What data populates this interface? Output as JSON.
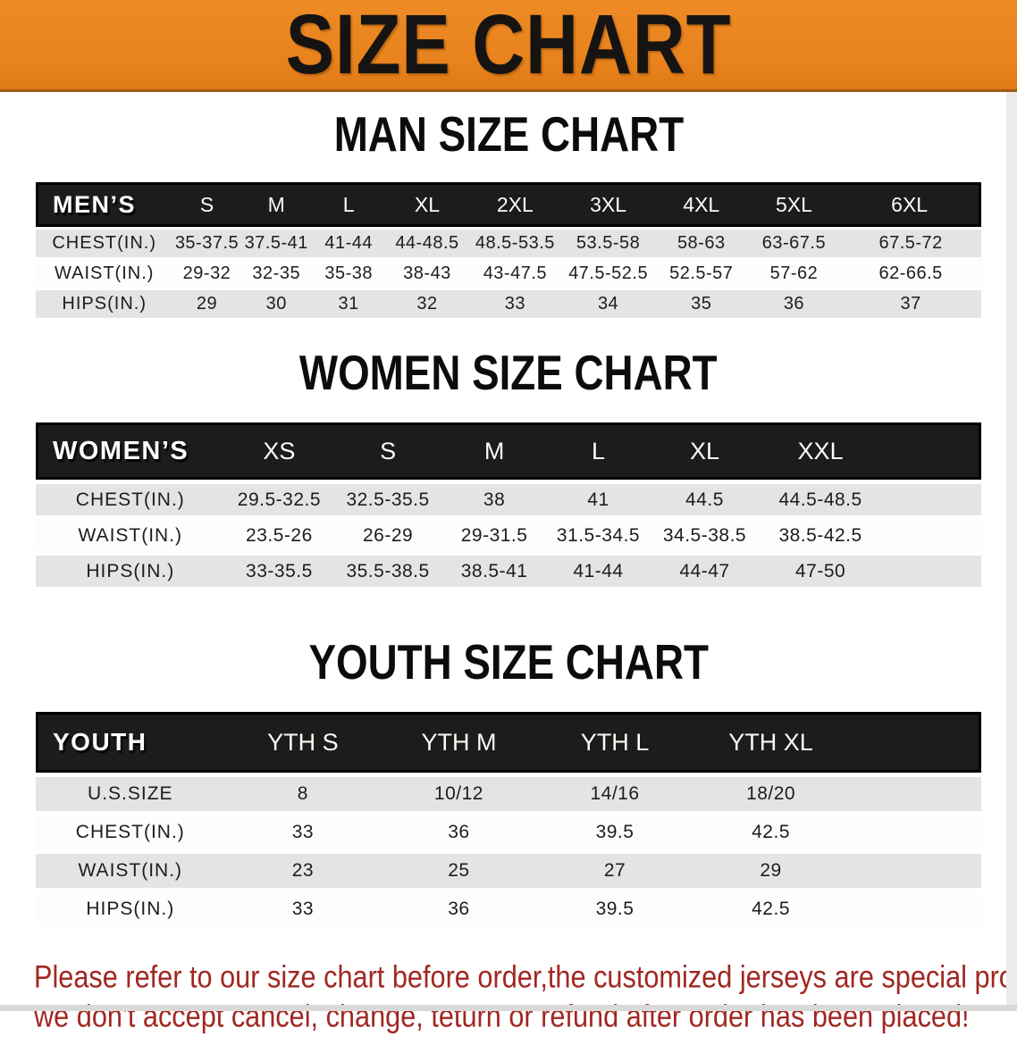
{
  "banner": {
    "title": "SIZE CHART",
    "bg_color": "#e8831e",
    "text_color": "#161413"
  },
  "sections": [
    {
      "id": "men",
      "title": "MAN SIZE CHART",
      "header_label": "MEN’S",
      "columns": [
        "S",
        "M",
        "L",
        "XL",
        "2XL",
        "3XL",
        "4XL",
        "5XL",
        "6XL"
      ],
      "rows": [
        {
          "label": "CHEST(IN.)",
          "values": [
            "35-37.5",
            "37.5-41",
            "41-44",
            "44-48.5",
            "48.5-53.5",
            "53.5-58",
            "58-63",
            "63-67.5",
            "67.5-72"
          ]
        },
        {
          "label": "WAIST(IN.)",
          "values": [
            "29-32",
            "32-35",
            "35-38",
            "38-43",
            "43-47.5",
            "47.5-52.5",
            "52.5-57",
            "57-62",
            "62-66.5"
          ]
        },
        {
          "label": "HIPS(IN.)",
          "values": [
            "29",
            "30",
            "31",
            "32",
            "33",
            "34",
            "35",
            "36",
            "37"
          ]
        }
      ]
    },
    {
      "id": "women",
      "title": "WOMEN SIZE CHART",
      "header_label": "WOMEN’S",
      "columns": [
        "XS",
        "S",
        "M",
        "L",
        "XL",
        "XXL"
      ],
      "rows": [
        {
          "label": "CHEST(IN.)",
          "values": [
            "29.5-32.5",
            "32.5-35.5",
            "38",
            "41",
            "44.5",
            "44.5-48.5"
          ]
        },
        {
          "label": "WAIST(IN.)",
          "values": [
            "23.5-26",
            "26-29",
            "29-31.5",
            "31.5-34.5",
            "34.5-38.5",
            "38.5-42.5"
          ]
        },
        {
          "label": "HIPS(IN.)",
          "values": [
            "33-35.5",
            "35.5-38.5",
            "38.5-41",
            "41-44",
            "44-47",
            "47-50"
          ]
        }
      ]
    },
    {
      "id": "youth",
      "title": "YOUTH SIZE CHART",
      "header_label": "YOUTH",
      "columns": [
        "YTH S",
        "YTH M",
        "YTH L",
        "YTH XL"
      ],
      "rows": [
        {
          "label": "U.S.SIZE",
          "values": [
            "8",
            "10/12",
            "14/16",
            "18/20"
          ]
        },
        {
          "label": "CHEST(IN.)",
          "values": [
            "33",
            "36",
            "39.5",
            "42.5"
          ]
        },
        {
          "label": "WAIST(IN.)",
          "values": [
            "23",
            "25",
            "27",
            "29"
          ]
        },
        {
          "label": "HIPS(IN.)",
          "values": [
            "33",
            "36",
            "39.5",
            "42.5"
          ]
        }
      ]
    }
  ],
  "table_colors": {
    "header_bg": "#1d1c1b",
    "stripe_gray": "#e4e4e3",
    "stripe_white": "#fdfdfd"
  },
  "disclaimer": {
    "line1": "Please refer to our size chart before order,the customized jerseys are special products,",
    "line2": "we don't accept cancel, change, teturn or refund after order has been placed!",
    "color": "#a12722"
  }
}
